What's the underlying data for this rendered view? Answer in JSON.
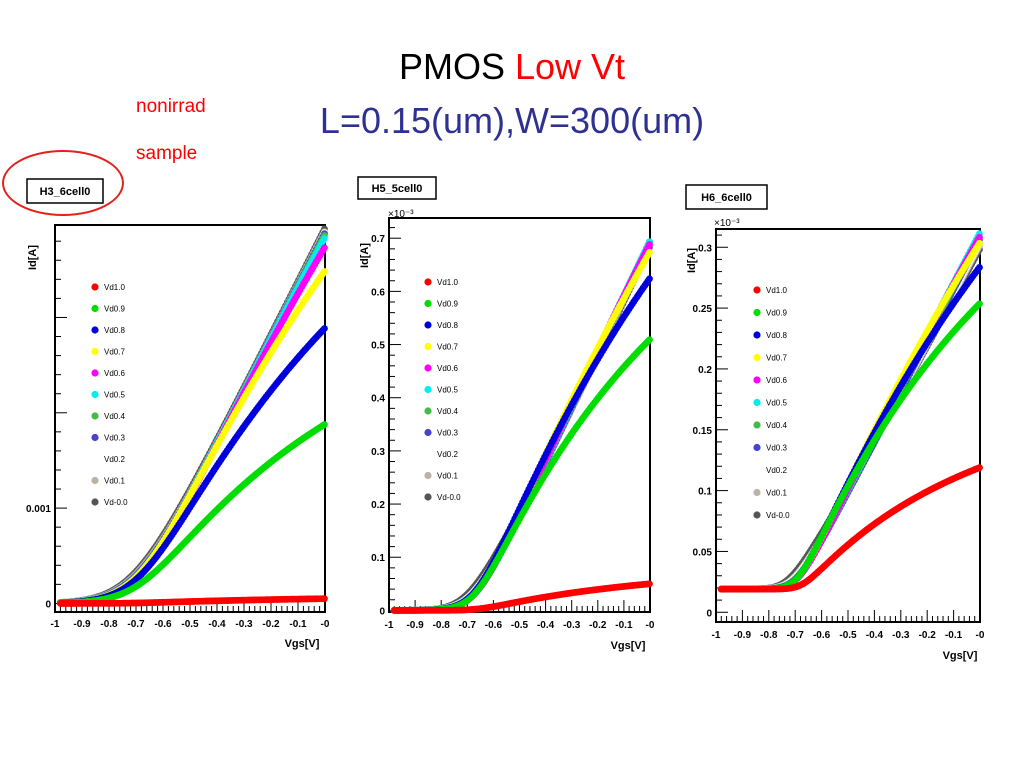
{
  "title": {
    "main": "PMOS",
    "highlight": "Low Vt",
    "subtitle": "L=0.15(um),W=300(um)"
  },
  "annotation": {
    "line1": "nonirrad",
    "line2": "sample"
  },
  "colors": {
    "title_highlight": "#ff0000",
    "subtitle": "#2e3191",
    "annotation": "#ff0000"
  },
  "chart_data": [
    {
      "type": "scatter",
      "title": "H3_6cell0",
      "xlabel": "Vgs[V]",
      "ylabel": "Id[A]",
      "exponent": "",
      "xlim": [
        -1,
        0
      ],
      "ylim": [
        -9e-05,
        0.00397
      ],
      "x_ticks": [
        "-1",
        "-0.9",
        "-0.8",
        "-0.7",
        "-0.6",
        "-0.5",
        "-0.4",
        "-0.3",
        "-0.2",
        "-0.1",
        "-0"
      ],
      "y_ticks": [
        {
          "value": 0,
          "label": "0"
        },
        {
          "value": 0.001,
          "label": "0.001"
        }
      ],
      "legend_position": "upper-left",
      "series": [
        {
          "name": "Vd1.0",
          "color": "#ff0000",
          "vth": -0.72,
          "ymax": 5e-05,
          "sharp": 1.8,
          "sat": 0.5
        },
        {
          "name": "Vd0.9",
          "color": "#00dd00",
          "vth": -0.7,
          "ymax": 0.00188,
          "sharp": 1.3,
          "sat": 0.45
        },
        {
          "name": "Vd0.8",
          "color": "#0000dd",
          "vth": -0.7,
          "ymax": 0.00289,
          "sharp": 1.3,
          "sat": 0.35
        },
        {
          "name": "Vd0.7",
          "color": "#ffff00",
          "vth": -0.7,
          "ymax": 0.00349,
          "sharp": 1.3,
          "sat": 0.25
        },
        {
          "name": "Vd0.6",
          "color": "#ff00ff",
          "vth": -0.7,
          "ymax": 0.00374,
          "sharp": 1.3,
          "sat": 0.15
        },
        {
          "name": "Vd0.5",
          "color": "#00eeee",
          "vth": -0.71,
          "ymax": 0.00384,
          "sharp": 1.3,
          "sat": 0.1
        },
        {
          "name": "Vd0.4",
          "color": "#44bb44",
          "vth": -0.71,
          "ymax": 0.00387,
          "sharp": 1.3,
          "sat": 0.08
        },
        {
          "name": "Vd0.3",
          "color": "#4444cc",
          "vth": -0.72,
          "ymax": 0.00389,
          "sharp": 1.3,
          "sat": 0.06
        },
        {
          "name": "Vd0.2",
          "color": "#ffffff",
          "vth": -0.72,
          "ymax": 0.0039,
          "sharp": 1.3,
          "sat": 0.05
        },
        {
          "name": "Vd0.1",
          "color": "#bbb3a8",
          "vth": -0.73,
          "ymax": 0.00391,
          "sharp": 1.3,
          "sat": 0.04
        },
        {
          "name": "Vd-0.0",
          "color": "#555555",
          "vth": -0.74,
          "ymax": 0.00394,
          "sharp": 1.3,
          "sat": 0.03
        }
      ]
    },
    {
      "type": "scatter",
      "title": "H5_5cell0",
      "xlabel": "Vgs[V]",
      "ylabel": "Id[A]",
      "exponent": "×10⁻³",
      "xlim": [
        -1,
        0
      ],
      "ylim": [
        -0.003,
        0.738
      ],
      "x_ticks": [
        "-1",
        "-0.9",
        "-0.8",
        "-0.7",
        "-0.6",
        "-0.5",
        "-0.4",
        "-0.3",
        "-0.2",
        "-0.1",
        "-0"
      ],
      "y_ticks": [
        {
          "value": 0,
          "label": "0"
        },
        {
          "value": 0.1,
          "label": "0.1"
        },
        {
          "value": 0.2,
          "label": "0.2"
        },
        {
          "value": 0.3,
          "label": "0.3"
        },
        {
          "value": 0.4,
          "label": "0.4"
        },
        {
          "value": 0.5,
          "label": "0.5"
        },
        {
          "value": 0.6,
          "label": "0.6"
        },
        {
          "value": 0.7,
          "label": "0.7"
        }
      ],
      "legend_position": "upper-left",
      "series": [
        {
          "name": "Vd1.0",
          "color": "#ff0000",
          "vth": -0.66,
          "ymax": 0.05,
          "sharp": 2.5,
          "sat": 0.55
        },
        {
          "name": "Vd0.9",
          "color": "#00dd00",
          "vth": -0.68,
          "ymax": 0.51,
          "sharp": 2.3,
          "sat": 0.45
        },
        {
          "name": "Vd0.8",
          "color": "#0000dd",
          "vth": -0.68,
          "ymax": 0.625,
          "sharp": 2.2,
          "sat": 0.3
        },
        {
          "name": "Vd0.7",
          "color": "#ffff00",
          "vth": -0.68,
          "ymax": 0.675,
          "sharp": 2.2,
          "sat": 0.18
        },
        {
          "name": "Vd0.6",
          "color": "#ff00ff",
          "vth": -0.68,
          "ymax": 0.69,
          "sharp": 2.2,
          "sat": 0.1
        },
        {
          "name": "Vd0.5",
          "color": "#00eeee",
          "vth": -0.685,
          "ymax": 0.695,
          "sharp": 2.2,
          "sat": 0.07
        },
        {
          "name": "Vd0.4",
          "color": "#44bb44",
          "vth": -0.69,
          "ymax": 0.695,
          "sharp": 2.2,
          "sat": 0.05
        },
        {
          "name": "Vd0.3",
          "color": "#4444cc",
          "vth": -0.69,
          "ymax": 0.695,
          "sharp": 2.2,
          "sat": 0.04
        },
        {
          "name": "Vd0.2",
          "color": "#ffffff",
          "vth": -0.7,
          "ymax": 0.695,
          "sharp": 2.2,
          "sat": 0.03
        },
        {
          "name": "Vd0.1",
          "color": "#bbb3a8",
          "vth": -0.7,
          "ymax": 0.69,
          "sharp": 2.2,
          "sat": 0.02
        },
        {
          "name": "Vd-0.0",
          "color": "#555555",
          "vth": -0.72,
          "ymax": 0.685,
          "sharp": 2.2,
          "sat": 0.0
        }
      ]
    },
    {
      "type": "scatter",
      "title": "H6_6cell0",
      "xlabel": "Vgs[V]",
      "ylabel": "Id[A]",
      "exponent": "×10⁻³",
      "xlim": [
        -1,
        0
      ],
      "ylim": [
        -0.008,
        0.315
      ],
      "x_ticks": [
        "-1",
        "-0.9",
        "-0.8",
        "-0.7",
        "-0.6",
        "-0.5",
        "-0.4",
        "-0.3",
        "-0.2",
        "-0.1",
        "-0"
      ],
      "y_ticks": [
        {
          "value": 0,
          "label": "0"
        },
        {
          "value": 0.05,
          "label": "0.05"
        },
        {
          "value": 0.1,
          "label": "0.1"
        },
        {
          "value": 0.15,
          "label": "0.15"
        },
        {
          "value": 0.2,
          "label": "0.2"
        },
        {
          "value": 0.25,
          "label": "0.25"
        },
        {
          "value": 0.3,
          "label": "0.3"
        }
      ],
      "legend_position": "upper-left",
      "series": [
        {
          "name": "Vd1.0",
          "color": "#ff0000",
          "vth": -0.68,
          "ymax": 0.1,
          "sharp": 4.0,
          "sat": 0.6
        },
        {
          "name": "Vd0.9",
          "color": "#00dd00",
          "vth": -0.7,
          "ymax": 0.235,
          "sharp": 3.6,
          "sat": 0.45
        },
        {
          "name": "Vd0.8",
          "color": "#0000dd",
          "vth": -0.7,
          "ymax": 0.265,
          "sharp": 3.4,
          "sat": 0.3
        },
        {
          "name": "Vd0.7",
          "color": "#ffff00",
          "vth": -0.7,
          "ymax": 0.285,
          "sharp": 3.3,
          "sat": 0.2
        },
        {
          "name": "Vd0.6",
          "color": "#ff00ff",
          "vth": -0.7,
          "ymax": 0.29,
          "sharp": 3.3,
          "sat": 0.12
        },
        {
          "name": "Vd0.5",
          "color": "#00eeee",
          "vth": -0.705,
          "ymax": 0.293,
          "sharp": 3.3,
          "sat": 0.08
        },
        {
          "name": "Vd0.4",
          "color": "#44bb44",
          "vth": -0.71,
          "ymax": 0.29,
          "sharp": 3.3,
          "sat": 0.06
        },
        {
          "name": "Vd0.3",
          "color": "#4444cc",
          "vth": -0.71,
          "ymax": 0.288,
          "sharp": 3.3,
          "sat": 0.05
        },
        {
          "name": "Vd0.2",
          "color": "#ffffff",
          "vth": -0.72,
          "ymax": 0.285,
          "sharp": 3.3,
          "sat": 0.04
        },
        {
          "name": "Vd0.1",
          "color": "#bbb3a8",
          "vth": -0.725,
          "ymax": 0.283,
          "sharp": 3.3,
          "sat": 0.03
        },
        {
          "name": "Vd-0.0",
          "color": "#555555",
          "vth": -0.74,
          "ymax": 0.28,
          "sharp": 3.3,
          "sat": 0.02
        }
      ],
      "baseline": 0.019
    }
  ]
}
